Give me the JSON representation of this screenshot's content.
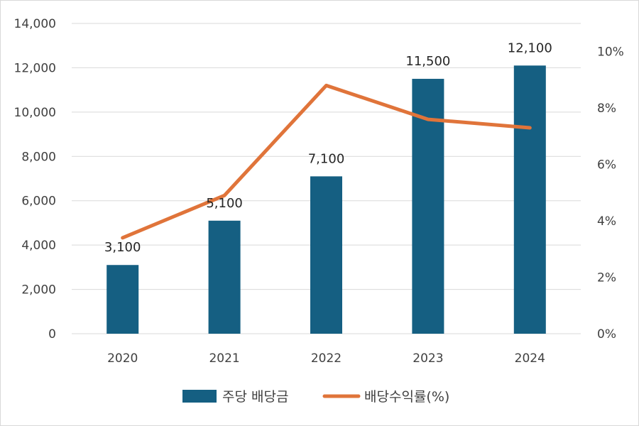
{
  "chart_data": {
    "type": "bar",
    "categories": [
      "2020",
      "2021",
      "2022",
      "2023",
      "2024"
    ],
    "series": [
      {
        "name": "주당 배당금",
        "type": "bar",
        "axis": "left",
        "color": "#155f82",
        "values": [
          3100,
          5100,
          7100,
          11500,
          12100
        ],
        "data_labels": [
          "3,100",
          "5,100",
          "7,100",
          "11,500",
          "12,100"
        ]
      },
      {
        "name": "배당수익률(%)",
        "type": "line",
        "axis": "right",
        "color": "#e0743a",
        "values": [
          3.4,
          4.9,
          8.8,
          7.6,
          7.3
        ]
      }
    ],
    "y_left": {
      "ylim": [
        0,
        14000
      ],
      "ticks": [
        0,
        2000,
        4000,
        6000,
        8000,
        10000,
        12000,
        14000
      ],
      "tick_labels": [
        "0",
        "2,000",
        "4,000",
        "6,000",
        "8,000",
        "10,000",
        "12,000",
        "14,000"
      ]
    },
    "y_right": {
      "ylim": [
        0,
        11
      ],
      "ticks": [
        0,
        2,
        4,
        6,
        8,
        10
      ],
      "tick_labels": [
        "0%",
        "2%",
        "4%",
        "6%",
        "8%",
        "10%"
      ]
    },
    "grid": true,
    "legend_position": "bottom",
    "title": ""
  }
}
